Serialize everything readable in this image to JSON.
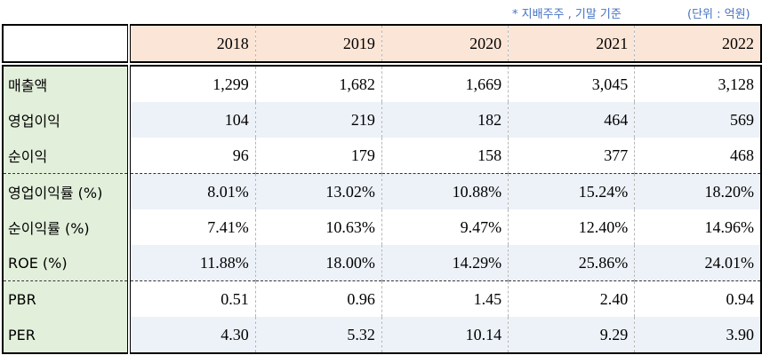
{
  "notes": {
    "basis": "* 지배주주 , 기말 기준",
    "unit": "(단위 : 억원)"
  },
  "colors": {
    "header_bg": "#fbe5d6",
    "label_bg": "#e2efda",
    "shaded_row_bg": "#edf2f9",
    "note_text": "#4472c4"
  },
  "table": {
    "years": [
      "2018",
      "2019",
      "2020",
      "2021",
      "2022"
    ],
    "rows": [
      {
        "label": "매출액",
        "values": [
          "1,299",
          "1,682",
          "1,669",
          "3,045",
          "3,128"
        ]
      },
      {
        "label": "영업이익",
        "values": [
          "104",
          "219",
          "182",
          "464",
          "569"
        ]
      },
      {
        "label": "순이익",
        "values": [
          "96",
          "179",
          "158",
          "377",
          "468"
        ]
      },
      {
        "label": "영업이익률 (%)",
        "values": [
          "8.01%",
          "13.02%",
          "10.88%",
          "15.24%",
          "18.20%"
        ]
      },
      {
        "label": "순이익률 (%)",
        "values": [
          "7.41%",
          "10.63%",
          "9.47%",
          "12.40%",
          "14.96%"
        ]
      },
      {
        "label": "ROE (%)",
        "values": [
          "11.88%",
          "18.00%",
          "14.29%",
          "25.86%",
          "24.01%"
        ]
      },
      {
        "label": "PBR",
        "values": [
          "0.51",
          "0.96",
          "1.45",
          "2.40",
          "0.94"
        ]
      },
      {
        "label": "PER",
        "values": [
          "4.30",
          "5.32",
          "10.14",
          "9.29",
          "3.90"
        ]
      }
    ]
  }
}
